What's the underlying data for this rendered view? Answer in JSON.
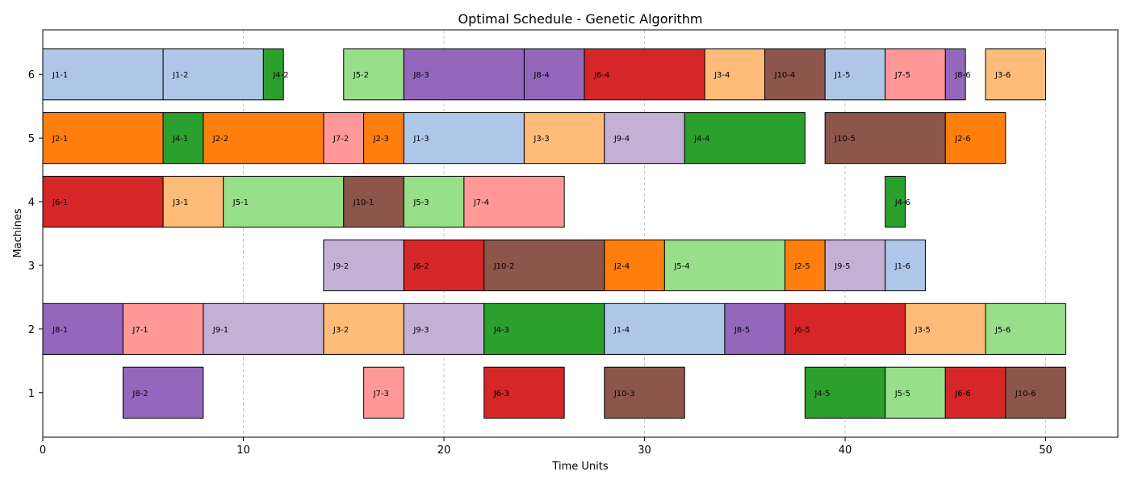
{
  "chart_data": {
    "type": "gantt",
    "title": "Optimal Schedule - Genetic Algorithm",
    "xlabel": "Time Units",
    "ylabel": "Machines",
    "xlim": [
      0,
      53.6
    ],
    "ylim": [
      0.3,
      6.7
    ],
    "xticks": [
      0,
      10,
      20,
      30,
      40,
      50
    ],
    "yticks": [
      1,
      2,
      3,
      4,
      5,
      6
    ],
    "grid": "x-dashed",
    "job_colors": {
      "J1": "#aec7e8",
      "J2": "#ff7f0e",
      "J3": "#ffbb78",
      "J4": "#2ca02c",
      "J5": "#98df8a",
      "J6": "#d62728",
      "J7": "#ff9896",
      "J8": "#9467bd",
      "J9": "#c5b0d5",
      "J10": "#8c564b"
    },
    "tasks": [
      {
        "label": "J1-1",
        "job": "J1",
        "machine": 6,
        "start": 0,
        "end": 6
      },
      {
        "label": "J1-2",
        "job": "J1",
        "machine": 6,
        "start": 6,
        "end": 11
      },
      {
        "label": "J4-2",
        "job": "J4",
        "machine": 6,
        "start": 11,
        "end": 12
      },
      {
        "label": "J5-2",
        "job": "J5",
        "machine": 6,
        "start": 15,
        "end": 18
      },
      {
        "label": "J8-3",
        "job": "J8",
        "machine": 6,
        "start": 18,
        "end": 24
      },
      {
        "label": "J8-4",
        "job": "J8",
        "machine": 6,
        "start": 24,
        "end": 27
      },
      {
        "label": "J6-4",
        "job": "J6",
        "machine": 6,
        "start": 27,
        "end": 33
      },
      {
        "label": "J3-4",
        "job": "J3",
        "machine": 6,
        "start": 33,
        "end": 36
      },
      {
        "label": "J10-4",
        "job": "J10",
        "machine": 6,
        "start": 36,
        "end": 39
      },
      {
        "label": "J1-5",
        "job": "J1",
        "machine": 6,
        "start": 39,
        "end": 42
      },
      {
        "label": "J7-5",
        "job": "J7",
        "machine": 6,
        "start": 42,
        "end": 45
      },
      {
        "label": "J8-6",
        "job": "J8",
        "machine": 6,
        "start": 45,
        "end": 46
      },
      {
        "label": "J3-6",
        "job": "J3",
        "machine": 6,
        "start": 47,
        "end": 50
      },
      {
        "label": "J2-1",
        "job": "J2",
        "machine": 5,
        "start": 0,
        "end": 6
      },
      {
        "label": "J4-1",
        "job": "J4",
        "machine": 5,
        "start": 6,
        "end": 8
      },
      {
        "label": "J2-2",
        "job": "J2",
        "machine": 5,
        "start": 8,
        "end": 14
      },
      {
        "label": "J7-2",
        "job": "J7",
        "machine": 5,
        "start": 14,
        "end": 16
      },
      {
        "label": "J2-3",
        "job": "J2",
        "machine": 5,
        "start": 16,
        "end": 18
      },
      {
        "label": "J1-3",
        "job": "J1",
        "machine": 5,
        "start": 18,
        "end": 24
      },
      {
        "label": "J3-3",
        "job": "J3",
        "machine": 5,
        "start": 24,
        "end": 28
      },
      {
        "label": "J9-4",
        "job": "J9",
        "machine": 5,
        "start": 28,
        "end": 32
      },
      {
        "label": "J4-4",
        "job": "J4",
        "machine": 5,
        "start": 32,
        "end": 38
      },
      {
        "label": "J10-5",
        "job": "J10",
        "machine": 5,
        "start": 39,
        "end": 45
      },
      {
        "label": "J2-6",
        "job": "J2",
        "machine": 5,
        "start": 45,
        "end": 48
      },
      {
        "label": "J6-1",
        "job": "J6",
        "machine": 4,
        "start": 0,
        "end": 6
      },
      {
        "label": "J3-1",
        "job": "J3",
        "machine": 4,
        "start": 6,
        "end": 9
      },
      {
        "label": "J5-1",
        "job": "J5",
        "machine": 4,
        "start": 9,
        "end": 15
      },
      {
        "label": "J10-1",
        "job": "J10",
        "machine": 4,
        "start": 15,
        "end": 18
      },
      {
        "label": "J5-3",
        "job": "J5",
        "machine": 4,
        "start": 18,
        "end": 21
      },
      {
        "label": "J7-4",
        "job": "J7",
        "machine": 4,
        "start": 21,
        "end": 26
      },
      {
        "label": "J4-6",
        "job": "J4",
        "machine": 4,
        "start": 42,
        "end": 43
      },
      {
        "label": "J9-2",
        "job": "J9",
        "machine": 3,
        "start": 14,
        "end": 18
      },
      {
        "label": "J6-2",
        "job": "J6",
        "machine": 3,
        "start": 18,
        "end": 22
      },
      {
        "label": "J10-2",
        "job": "J10",
        "machine": 3,
        "start": 22,
        "end": 28
      },
      {
        "label": "J2-4",
        "job": "J2",
        "machine": 3,
        "start": 28,
        "end": 31
      },
      {
        "label": "J5-4",
        "job": "J5",
        "machine": 3,
        "start": 31,
        "end": 37
      },
      {
        "label": "J2-5",
        "job": "J2",
        "machine": 3,
        "start": 37,
        "end": 39
      },
      {
        "label": "J9-5",
        "job": "J9",
        "machine": 3,
        "start": 39,
        "end": 42
      },
      {
        "label": "J1-6",
        "job": "J1",
        "machine": 3,
        "start": 42,
        "end": 44
      },
      {
        "label": "J8-1",
        "job": "J8",
        "machine": 2,
        "start": 0,
        "end": 4
      },
      {
        "label": "J7-1",
        "job": "J7",
        "machine": 2,
        "start": 4,
        "end": 8
      },
      {
        "label": "J9-1",
        "job": "J9",
        "machine": 2,
        "start": 8,
        "end": 14
      },
      {
        "label": "J3-2",
        "job": "J3",
        "machine": 2,
        "start": 14,
        "end": 18
      },
      {
        "label": "J9-3",
        "job": "J9",
        "machine": 2,
        "start": 18,
        "end": 22
      },
      {
        "label": "J4-3",
        "job": "J4",
        "machine": 2,
        "start": 22,
        "end": 28
      },
      {
        "label": "J1-4",
        "job": "J1",
        "machine": 2,
        "start": 28,
        "end": 34
      },
      {
        "label": "J8-5",
        "job": "J8",
        "machine": 2,
        "start": 34,
        "end": 37
      },
      {
        "label": "J6-5",
        "job": "J6",
        "machine": 2,
        "start": 37,
        "end": 43
      },
      {
        "label": "J3-5",
        "job": "J3",
        "machine": 2,
        "start": 43,
        "end": 47
      },
      {
        "label": "J5-6",
        "job": "J5",
        "machine": 2,
        "start": 47,
        "end": 51
      },
      {
        "label": "J8-2",
        "job": "J8",
        "machine": 1,
        "start": 4,
        "end": 8
      },
      {
        "label": "J7-3",
        "job": "J7",
        "machine": 1,
        "start": 16,
        "end": 18
      },
      {
        "label": "J6-3",
        "job": "J6",
        "machine": 1,
        "start": 22,
        "end": 26
      },
      {
        "label": "J10-3",
        "job": "J10",
        "machine": 1,
        "start": 28,
        "end": 32
      },
      {
        "label": "J4-5",
        "job": "J4",
        "machine": 1,
        "start": 38,
        "end": 42
      },
      {
        "label": "J5-5",
        "job": "J5",
        "machine": 1,
        "start": 42,
        "end": 45
      },
      {
        "label": "J6-6",
        "job": "J6",
        "machine": 1,
        "start": 45,
        "end": 48
      },
      {
        "label": "J10-6",
        "job": "J10",
        "machine": 1,
        "start": 48,
        "end": 51
      }
    ]
  }
}
